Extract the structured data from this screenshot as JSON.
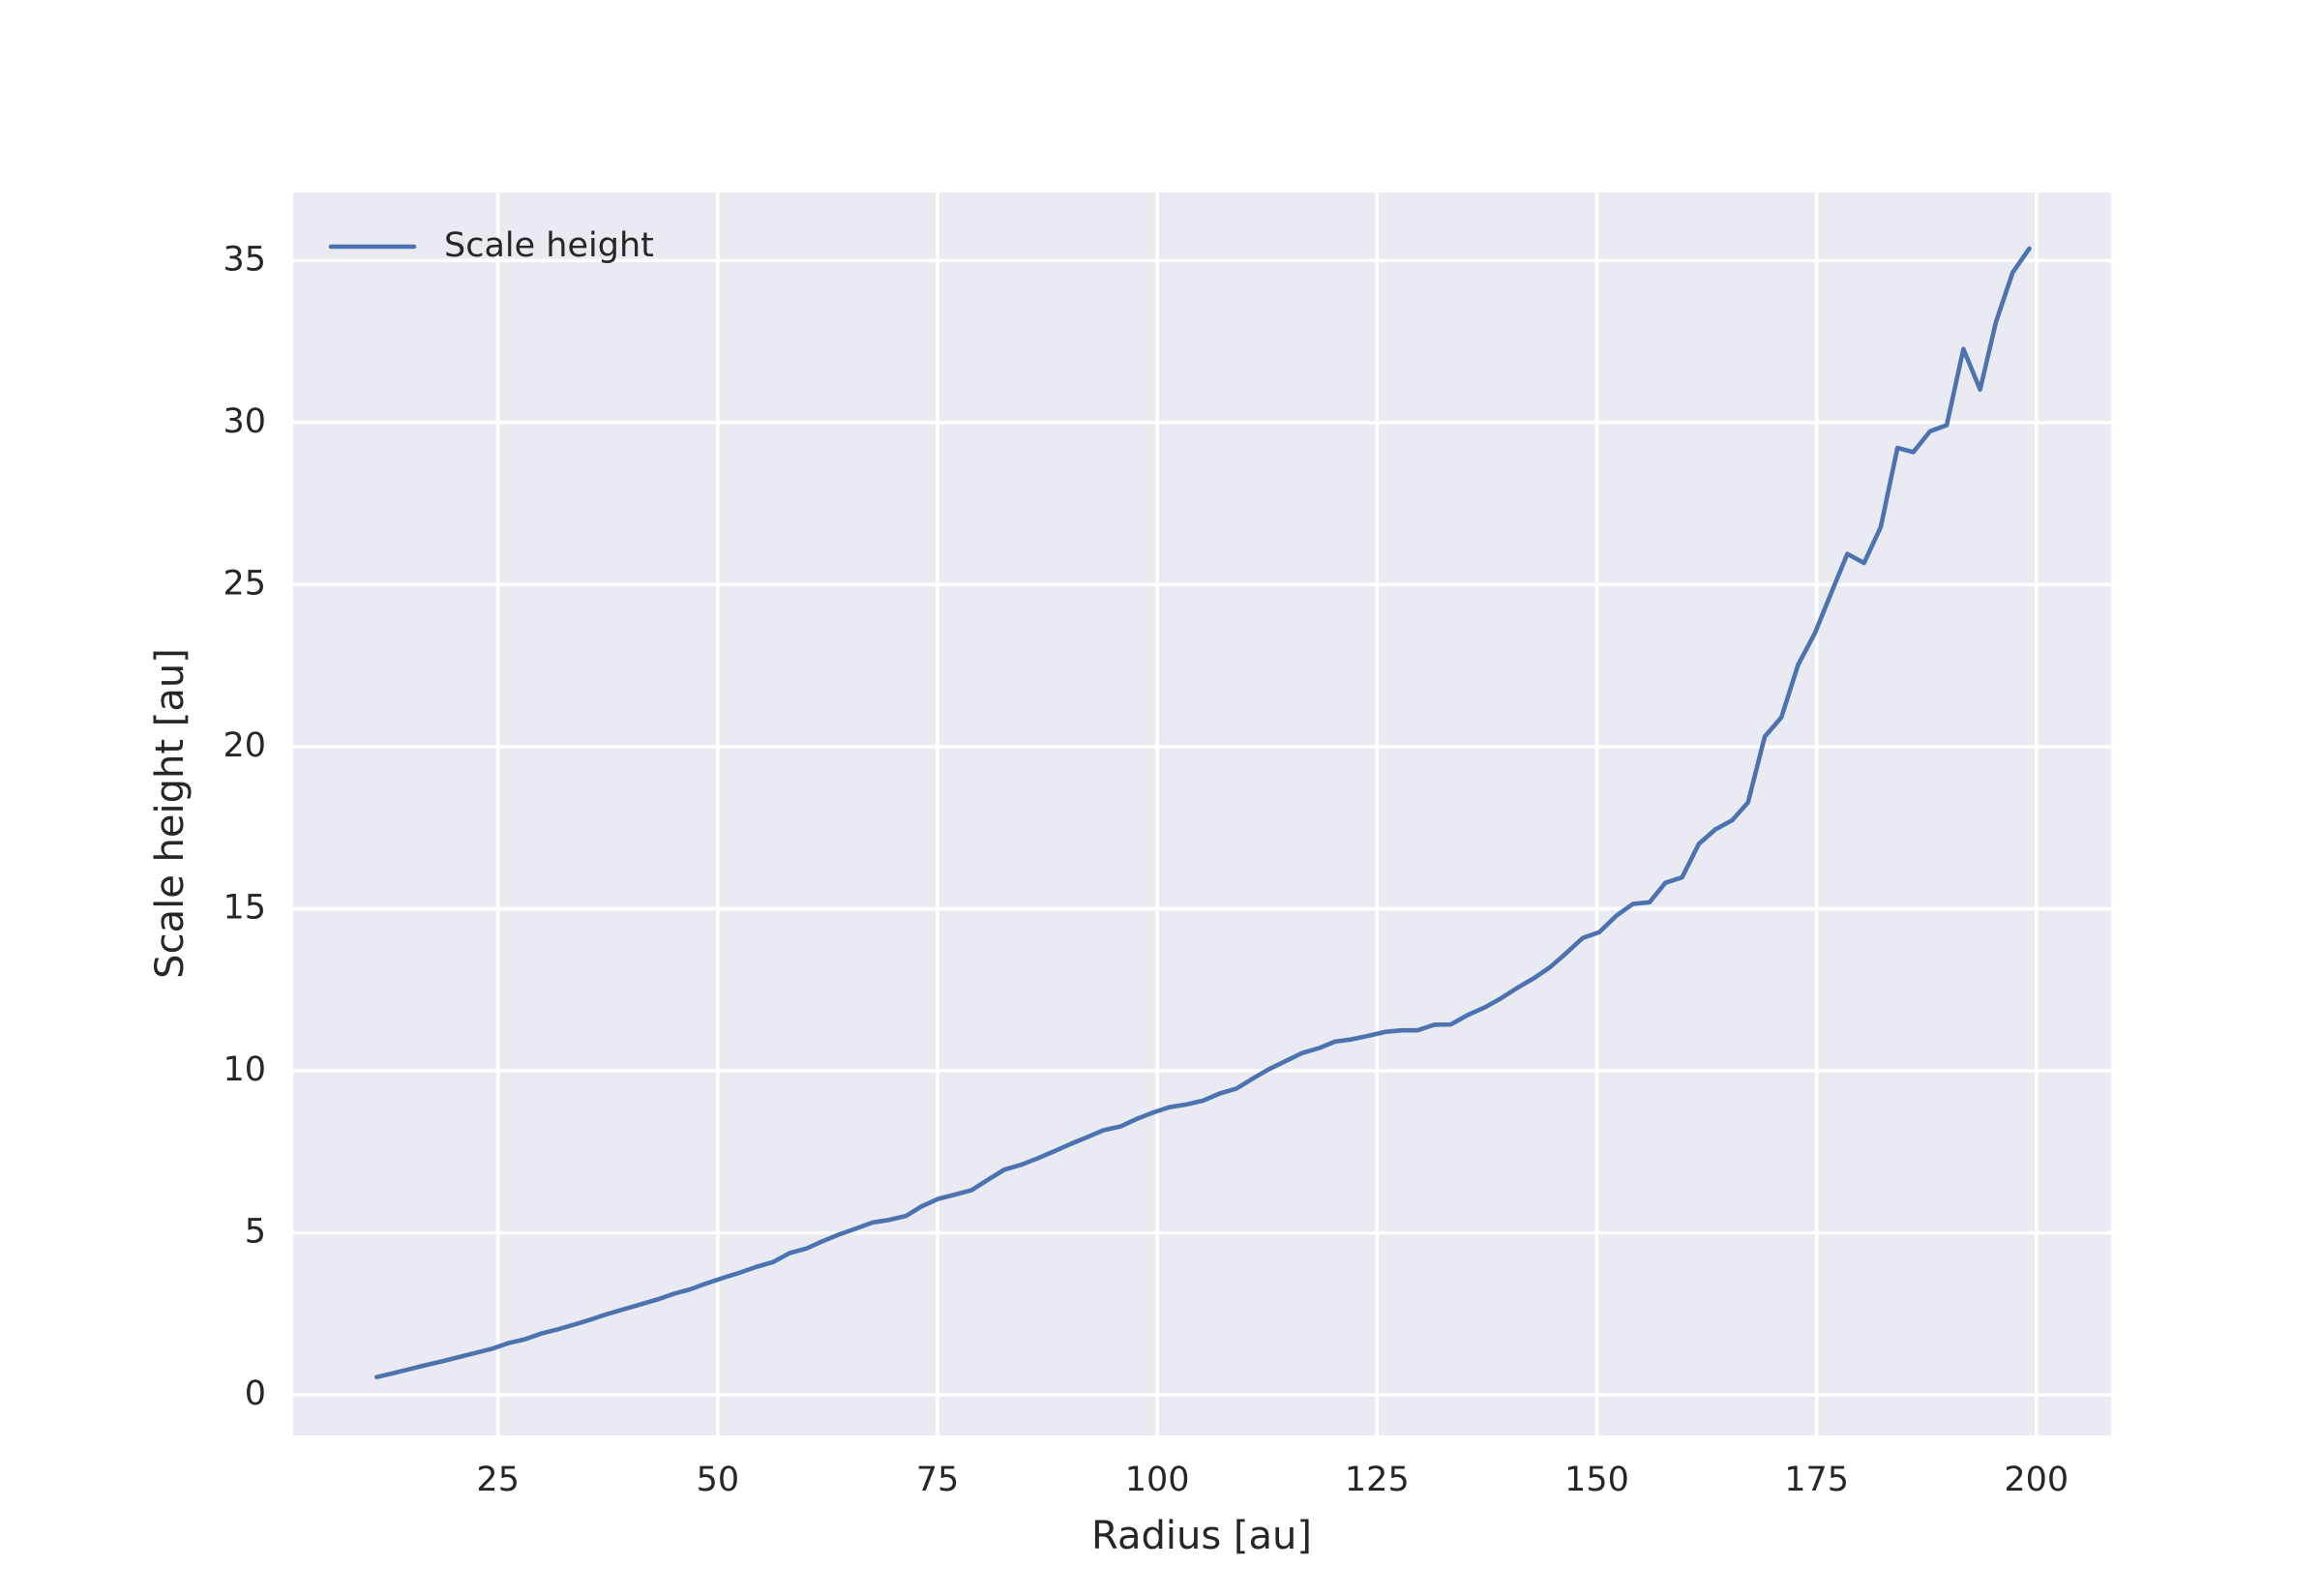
{
  "chart_data": {
    "type": "line",
    "x_label": "Radius [au]",
    "y_label": "Scale height [au]",
    "x": [
      11.2,
      13.1,
      15.0,
      16.8,
      18.7,
      20.6,
      22.5,
      24.4,
      26.2,
      28.1,
      30.0,
      31.9,
      33.8,
      35.6,
      37.5,
      39.4,
      41.3,
      43.2,
      45.0,
      46.9,
      48.8,
      50.7,
      52.6,
      54.4,
      56.3,
      58.2,
      60.1,
      62.0,
      63.8,
      65.7,
      67.6,
      69.5,
      71.4,
      73.2,
      75.1,
      77.0,
      78.9,
      80.8,
      82.6,
      84.5,
      86.4,
      88.3,
      90.2,
      92.0,
      93.9,
      95.8,
      97.7,
      99.6,
      101.4,
      103.3,
      105.2,
      107.1,
      109.0,
      110.8,
      112.7,
      114.6,
      116.5,
      118.4,
      120.2,
      122.1,
      124.0,
      125.9,
      127.8,
      129.6,
      131.5,
      133.4,
      135.3,
      137.2,
      139.0,
      140.9,
      142.8,
      144.7,
      146.6,
      148.4,
      150.3,
      152.2,
      154.1,
      156.0,
      157.8,
      159.7,
      161.6,
      163.5,
      165.4,
      167.2,
      169.1,
      171.0,
      172.9,
      174.8,
      176.6,
      178.5,
      180.4,
      182.3,
      184.2,
      186.0,
      187.9,
      189.8,
      191.7,
      193.6,
      195.4,
      197.3,
      199.2
    ],
    "series": [
      {
        "name": "Scale height",
        "color": "#4c72b0",
        "values": [
          0.55,
          0.67,
          0.8,
          0.92,
          1.04,
          1.17,
          1.3,
          1.43,
          1.6,
          1.72,
          1.9,
          2.03,
          2.18,
          2.33,
          2.5,
          2.65,
          2.8,
          2.95,
          3.12,
          3.26,
          3.45,
          3.62,
          3.78,
          3.95,
          4.1,
          4.38,
          4.52,
          4.75,
          4.95,
          5.13,
          5.32,
          5.4,
          5.52,
          5.82,
          6.05,
          6.18,
          6.32,
          6.65,
          6.95,
          7.1,
          7.3,
          7.52,
          7.75,
          7.95,
          8.17,
          8.28,
          8.52,
          8.72,
          8.88,
          8.96,
          9.08,
          9.3,
          9.45,
          9.75,
          10.05,
          10.3,
          10.55,
          10.7,
          10.9,
          10.97,
          11.08,
          11.2,
          11.25,
          11.25,
          11.42,
          11.43,
          11.72,
          11.95,
          12.22,
          12.55,
          12.85,
          13.2,
          13.65,
          14.1,
          14.28,
          14.78,
          15.15,
          15.2,
          15.8,
          15.97,
          17.0,
          17.45,
          17.73,
          18.28,
          20.31,
          20.91,
          22.53,
          23.5,
          24.7,
          25.95,
          25.67,
          26.78,
          29.22,
          29.09,
          29.73,
          29.92,
          32.27,
          31.02,
          33.1,
          34.63,
          35.37
        ]
      }
    ],
    "xlim": [
      1.7,
      208.5
    ],
    "ylim": [
      -1.25,
      37.1
    ],
    "xticks": [
      25,
      50,
      75,
      100,
      125,
      150,
      175,
      200
    ],
    "yticks": [
      0,
      5,
      10,
      15,
      20,
      25,
      30,
      35
    ],
    "grid": true,
    "legend": "upper left"
  }
}
